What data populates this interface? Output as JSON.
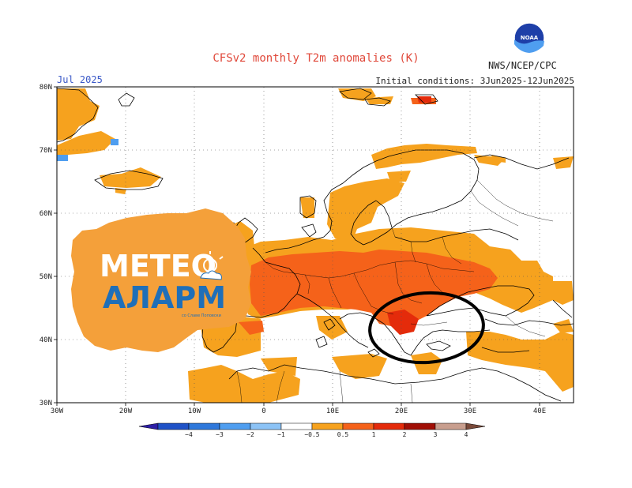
{
  "title": "CFSv2 monthly T2m anomalies (K)",
  "agency": "NWS/NCEP/CPC",
  "noaa_logo_text": "NOAA",
  "month": "Jul 2025",
  "initial_conditions": "Initial conditions: 3Jun2025-12Jun2025",
  "lat_labels": [
    "80N",
    "70N",
    "60N",
    "50N",
    "40N",
    "30N"
  ],
  "lon_labels": [
    "30W",
    "20W",
    "10W",
    "0",
    "10E",
    "20E",
    "30E",
    "40E"
  ],
  "colorbar": {
    "labels": [
      "−4",
      "−3",
      "−2",
      "−1",
      "−0.5",
      "0.5",
      "1",
      "2",
      "3",
      "4"
    ],
    "colors": [
      "#2e1fa6",
      "#1f52c7",
      "#2f78db",
      "#4f9ef0",
      "#8cc3f6",
      "#ffffff",
      "#f6a21e",
      "#f5621a",
      "#e42b0b",
      "#a10f06",
      "#c89e8e",
      "#7a4a3a"
    ]
  },
  "anomaly_colors": {
    "orange": "#f6a21e",
    "red_orange": "#f5621a",
    "red": "#e42b0b",
    "dark_red": "#a10f06",
    "light_blue": "#8cc3f6",
    "blue": "#4f9ef0"
  },
  "watermark": {
    "line1": "МЕТЕО",
    "line2": "АЛАРМ",
    "tagline": "со Славе Поповски",
    "bg_color": "#f4a03a",
    "text_color": "#ffffff",
    "accent_color": "#1f6fb8"
  }
}
